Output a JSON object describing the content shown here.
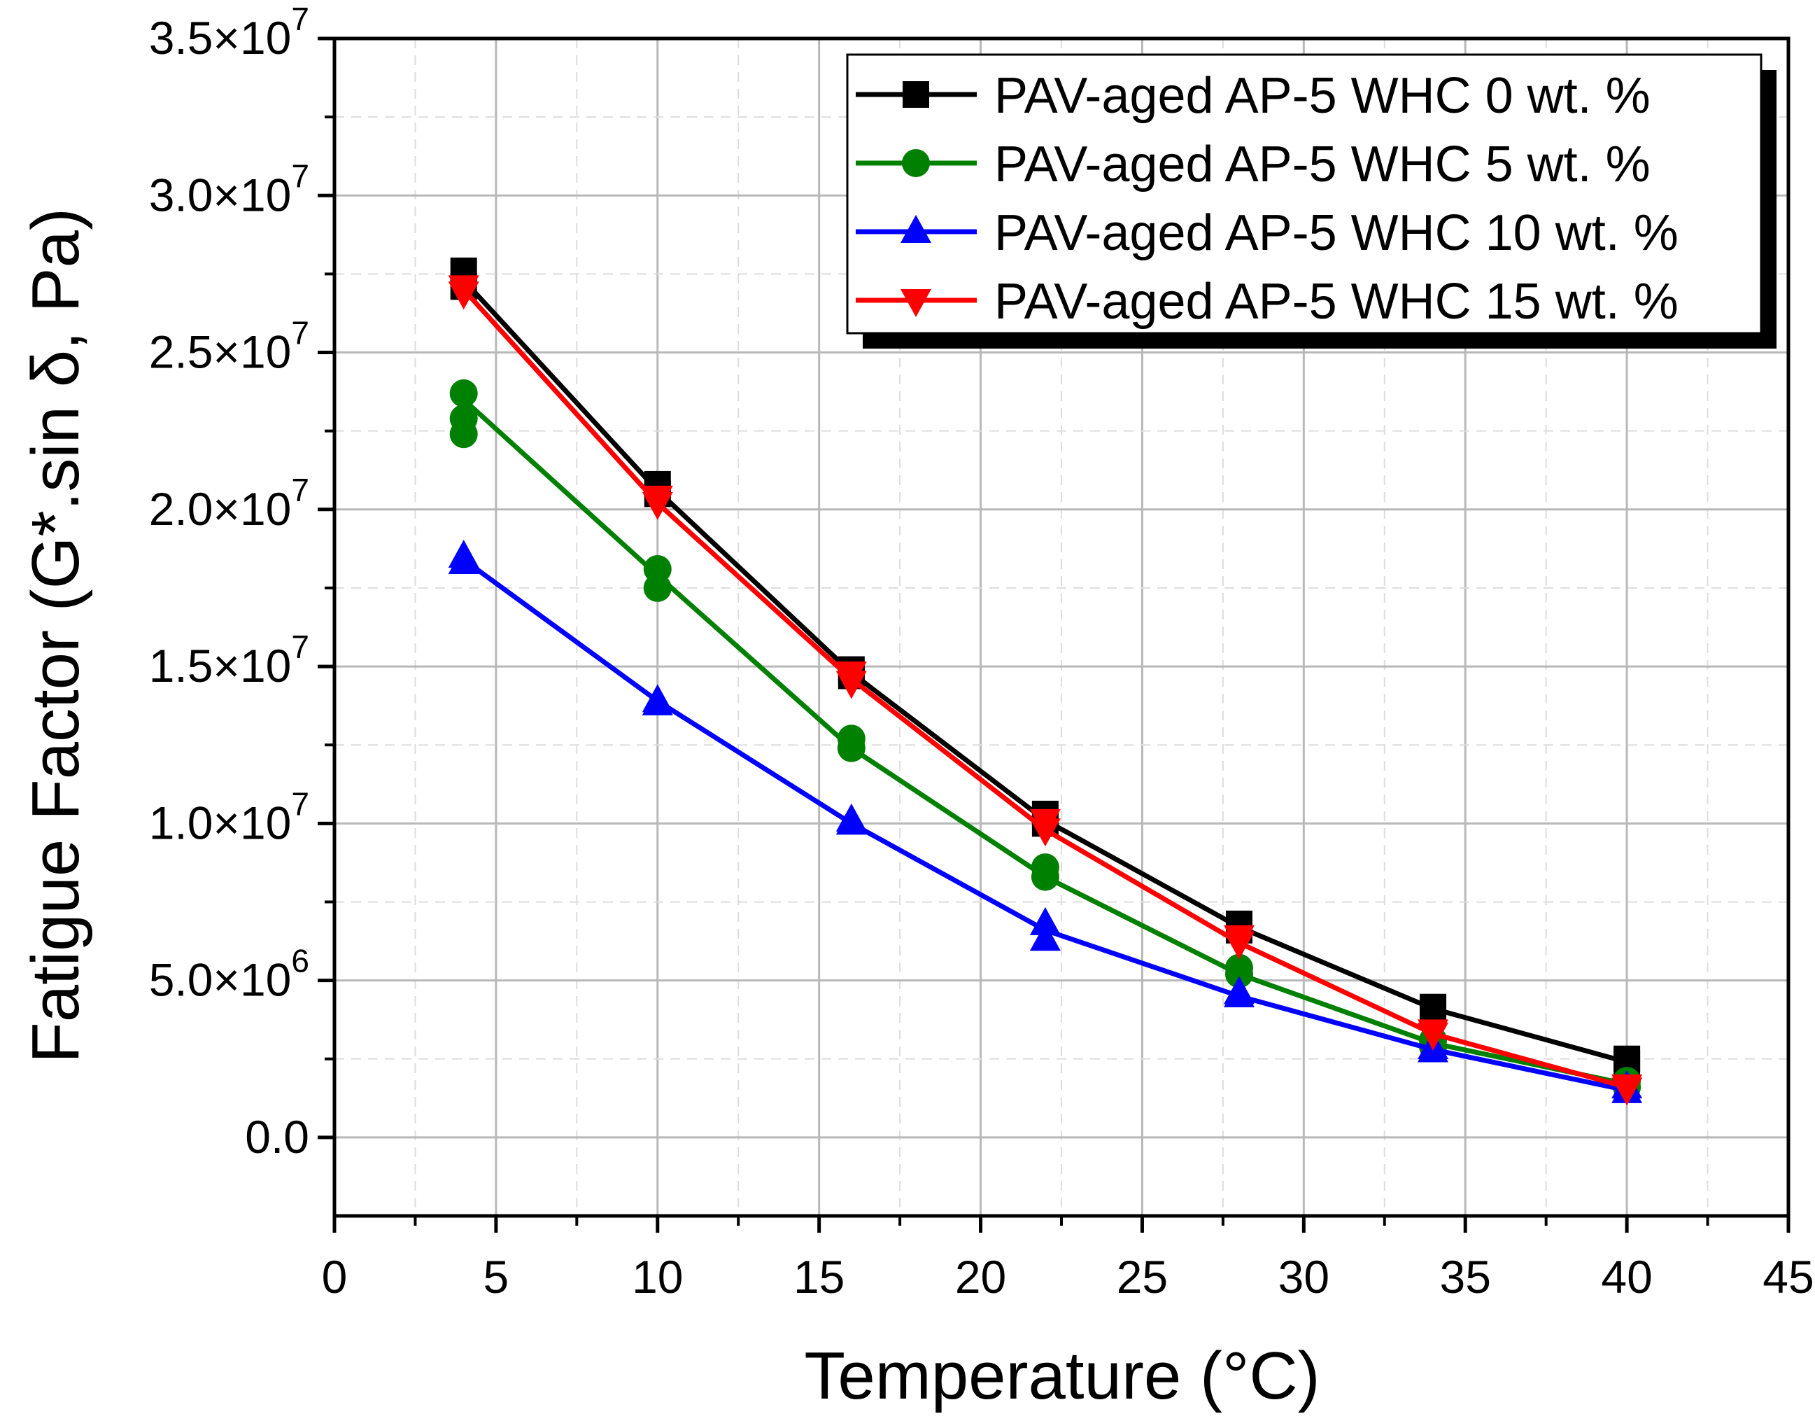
{
  "chart_data": {
    "type": "line",
    "xlabel": "Temperature (°C)",
    "ylabel": "Fatigue Factor (G*.sin δ, Pa)",
    "xlim": [
      0,
      45
    ],
    "ylim": [
      -2500000,
      35000000
    ],
    "x_ticks": [
      0,
      5,
      10,
      15,
      20,
      25,
      30,
      35,
      40,
      45
    ],
    "x_tick_labels": [
      "0",
      "5",
      "10",
      "15",
      "20",
      "25",
      "30",
      "35",
      "40",
      "45"
    ],
    "y_ticks": [
      0,
      5000000,
      10000000,
      15000000,
      20000000,
      25000000,
      30000000,
      35000000
    ],
    "y_tick_labels": [
      {
        "mantissa": "0.0",
        "exp": ""
      },
      {
        "mantissa": "5.0×10",
        "exp": "6"
      },
      {
        "mantissa": "1.0×10",
        "exp": "7"
      },
      {
        "mantissa": "1.5×10",
        "exp": "7"
      },
      {
        "mantissa": "2.0×10",
        "exp": "7"
      },
      {
        "mantissa": "2.5×10",
        "exp": "7"
      },
      {
        "mantissa": "3.0×10",
        "exp": "7"
      },
      {
        "mantissa": "3.5×10",
        "exp": "7"
      }
    ],
    "grid": true,
    "legend_position": "top-right",
    "x": [
      4,
      10,
      16,
      22,
      28,
      34,
      40
    ],
    "series": [
      {
        "name": "PAV-aged AP-5 WHC 0 wt. %",
        "color": "#000000",
        "marker": "square",
        "values": [
          27300000,
          20600000,
          14800000,
          10100000,
          6700000,
          4100000,
          2400000
        ],
        "replicates": [
          [
            27600000,
            27100000
          ],
          [
            20800000,
            20500000
          ],
          [
            14900000,
            14700000
          ],
          [
            10300000,
            10000000
          ],
          [
            6800000,
            6600000
          ],
          [
            4150000,
            4050000
          ],
          [
            2500000,
            2350000
          ]
        ]
      },
      {
        "name": "PAV-aged AP-5 WHC 5 wt. %",
        "color": "#008000",
        "marker": "circle",
        "values": [
          23500000,
          17900000,
          12400000,
          8300000,
          5200000,
          3000000,
          1700000
        ],
        "replicates": [
          [
            23700000,
            22900000,
            22400000
          ],
          [
            18100000,
            17500000
          ],
          [
            12700000,
            12400000
          ],
          [
            8600000,
            8300000
          ],
          [
            5400000,
            5200000
          ],
          [
            3100000,
            2900000
          ],
          [
            1800000,
            1600000
          ]
        ]
      },
      {
        "name": "PAV-aged AP-5 WHC 10 wt. %",
        "color": "#0000ff",
        "marker": "triangle-up",
        "values": [
          18400000,
          13900000,
          10000000,
          6600000,
          4500000,
          2800000,
          1500000
        ],
        "replicates": [
          [
            18500000,
            18300000
          ],
          [
            13900000,
            13800000
          ],
          [
            10100000,
            10000000
          ],
          [
            6800000,
            6300000
          ],
          [
            4600000,
            4500000
          ],
          [
            2850000,
            2750000
          ],
          [
            1600000,
            1450000
          ]
        ]
      },
      {
        "name": "PAV-aged AP-5 WHC 15 wt. %",
        "color": "#ff0000",
        "marker": "triangle-down",
        "values": [
          27000000,
          20200000,
          14600000,
          9800000,
          6200000,
          3300000,
          1600000
        ],
        "replicates": [
          [
            27100000,
            26900000
          ],
          [
            20400000,
            20200000
          ],
          [
            14800000,
            14500000
          ],
          [
            10100000,
            9800000
          ],
          [
            6400000,
            6200000
          ],
          [
            3400000,
            3300000
          ],
          [
            1650000,
            1550000
          ]
        ]
      }
    ]
  }
}
